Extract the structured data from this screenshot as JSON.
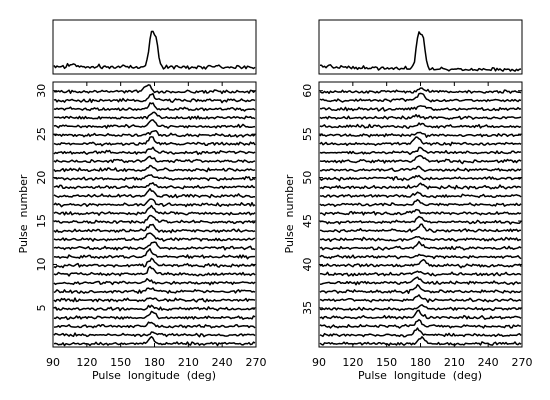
{
  "chart_data": [
    {
      "type": "line",
      "panel": "left",
      "title": "",
      "xlabel": "Pulse  longitude  (deg)",
      "ylabel": "Pulse  number",
      "xlim": [
        90,
        270
      ],
      "xticks": [
        90,
        120,
        150,
        180,
        210,
        240,
        270
      ],
      "pulse_range": [
        1,
        30
      ],
      "yticks": [
        5,
        10,
        15,
        20,
        25,
        30
      ],
      "pulse_peak_longitude_deg": 177,
      "integrated_profile": {
        "peak_longitude_deg": 178,
        "on_pulse_window_deg": [
          172,
          184
        ]
      },
      "grid": false,
      "legend": "none"
    },
    {
      "type": "line",
      "panel": "right",
      "title": "",
      "xlabel": "Pulse  longitude  (deg)",
      "ylabel": "Pulse  number",
      "xlim": [
        90,
        270
      ],
      "xticks": [
        90,
        120,
        150,
        180,
        210,
        240,
        270
      ],
      "pulse_range": [
        31,
        60
      ],
      "yticks": [
        35,
        40,
        45,
        50,
        55,
        60
      ],
      "pulse_peak_longitude_deg": 179,
      "integrated_profile": {
        "peak_longitude_deg": 179,
        "on_pulse_window_deg": [
          173,
          186
        ]
      },
      "grid": false,
      "legend": "none"
    }
  ]
}
